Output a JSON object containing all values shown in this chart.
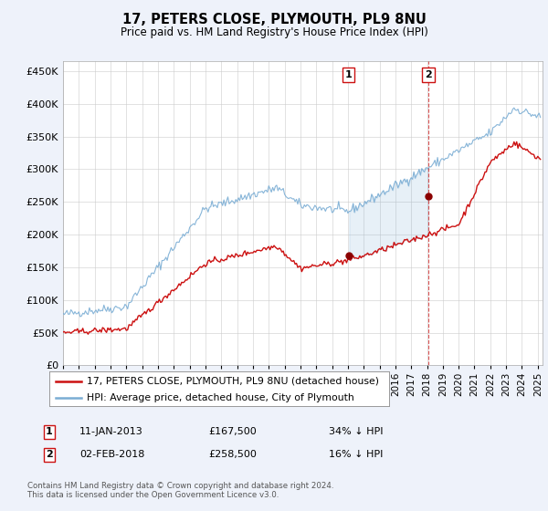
{
  "title": "17, PETERS CLOSE, PLYMOUTH, PL9 8NU",
  "subtitle": "Price paid vs. HM Land Registry's House Price Index (HPI)",
  "ylabel_values": [
    0,
    50000,
    100000,
    150000,
    200000,
    250000,
    300000,
    350000,
    400000,
    450000
  ],
  "ylim": [
    0,
    465000
  ],
  "xlim_start": 1995.0,
  "xlim_end": 2025.3,
  "hpi_color": "#7aadd4",
  "price_color": "#cc1111",
  "marker1_date_x": 2013.04,
  "marker1_price": 167500,
  "marker2_date_x": 2018.09,
  "marker2_price": 258500,
  "legend_label1": "17, PETERS CLOSE, PLYMOUTH, PL9 8NU (detached house)",
  "legend_label2": "HPI: Average price, detached house, City of Plymouth",
  "annotation1_date": "11-JAN-2013",
  "annotation1_price": "£167,500",
  "annotation1_pct": "34% ↓ HPI",
  "annotation2_date": "02-FEB-2018",
  "annotation2_price": "£258,500",
  "annotation2_pct": "16% ↓ HPI",
  "footer": "Contains HM Land Registry data © Crown copyright and database right 2024.\nThis data is licensed under the Open Government Licence v3.0.",
  "background_color": "#eef2fa",
  "plot_bg_color": "#ffffff",
  "grid_color": "#cccccc"
}
